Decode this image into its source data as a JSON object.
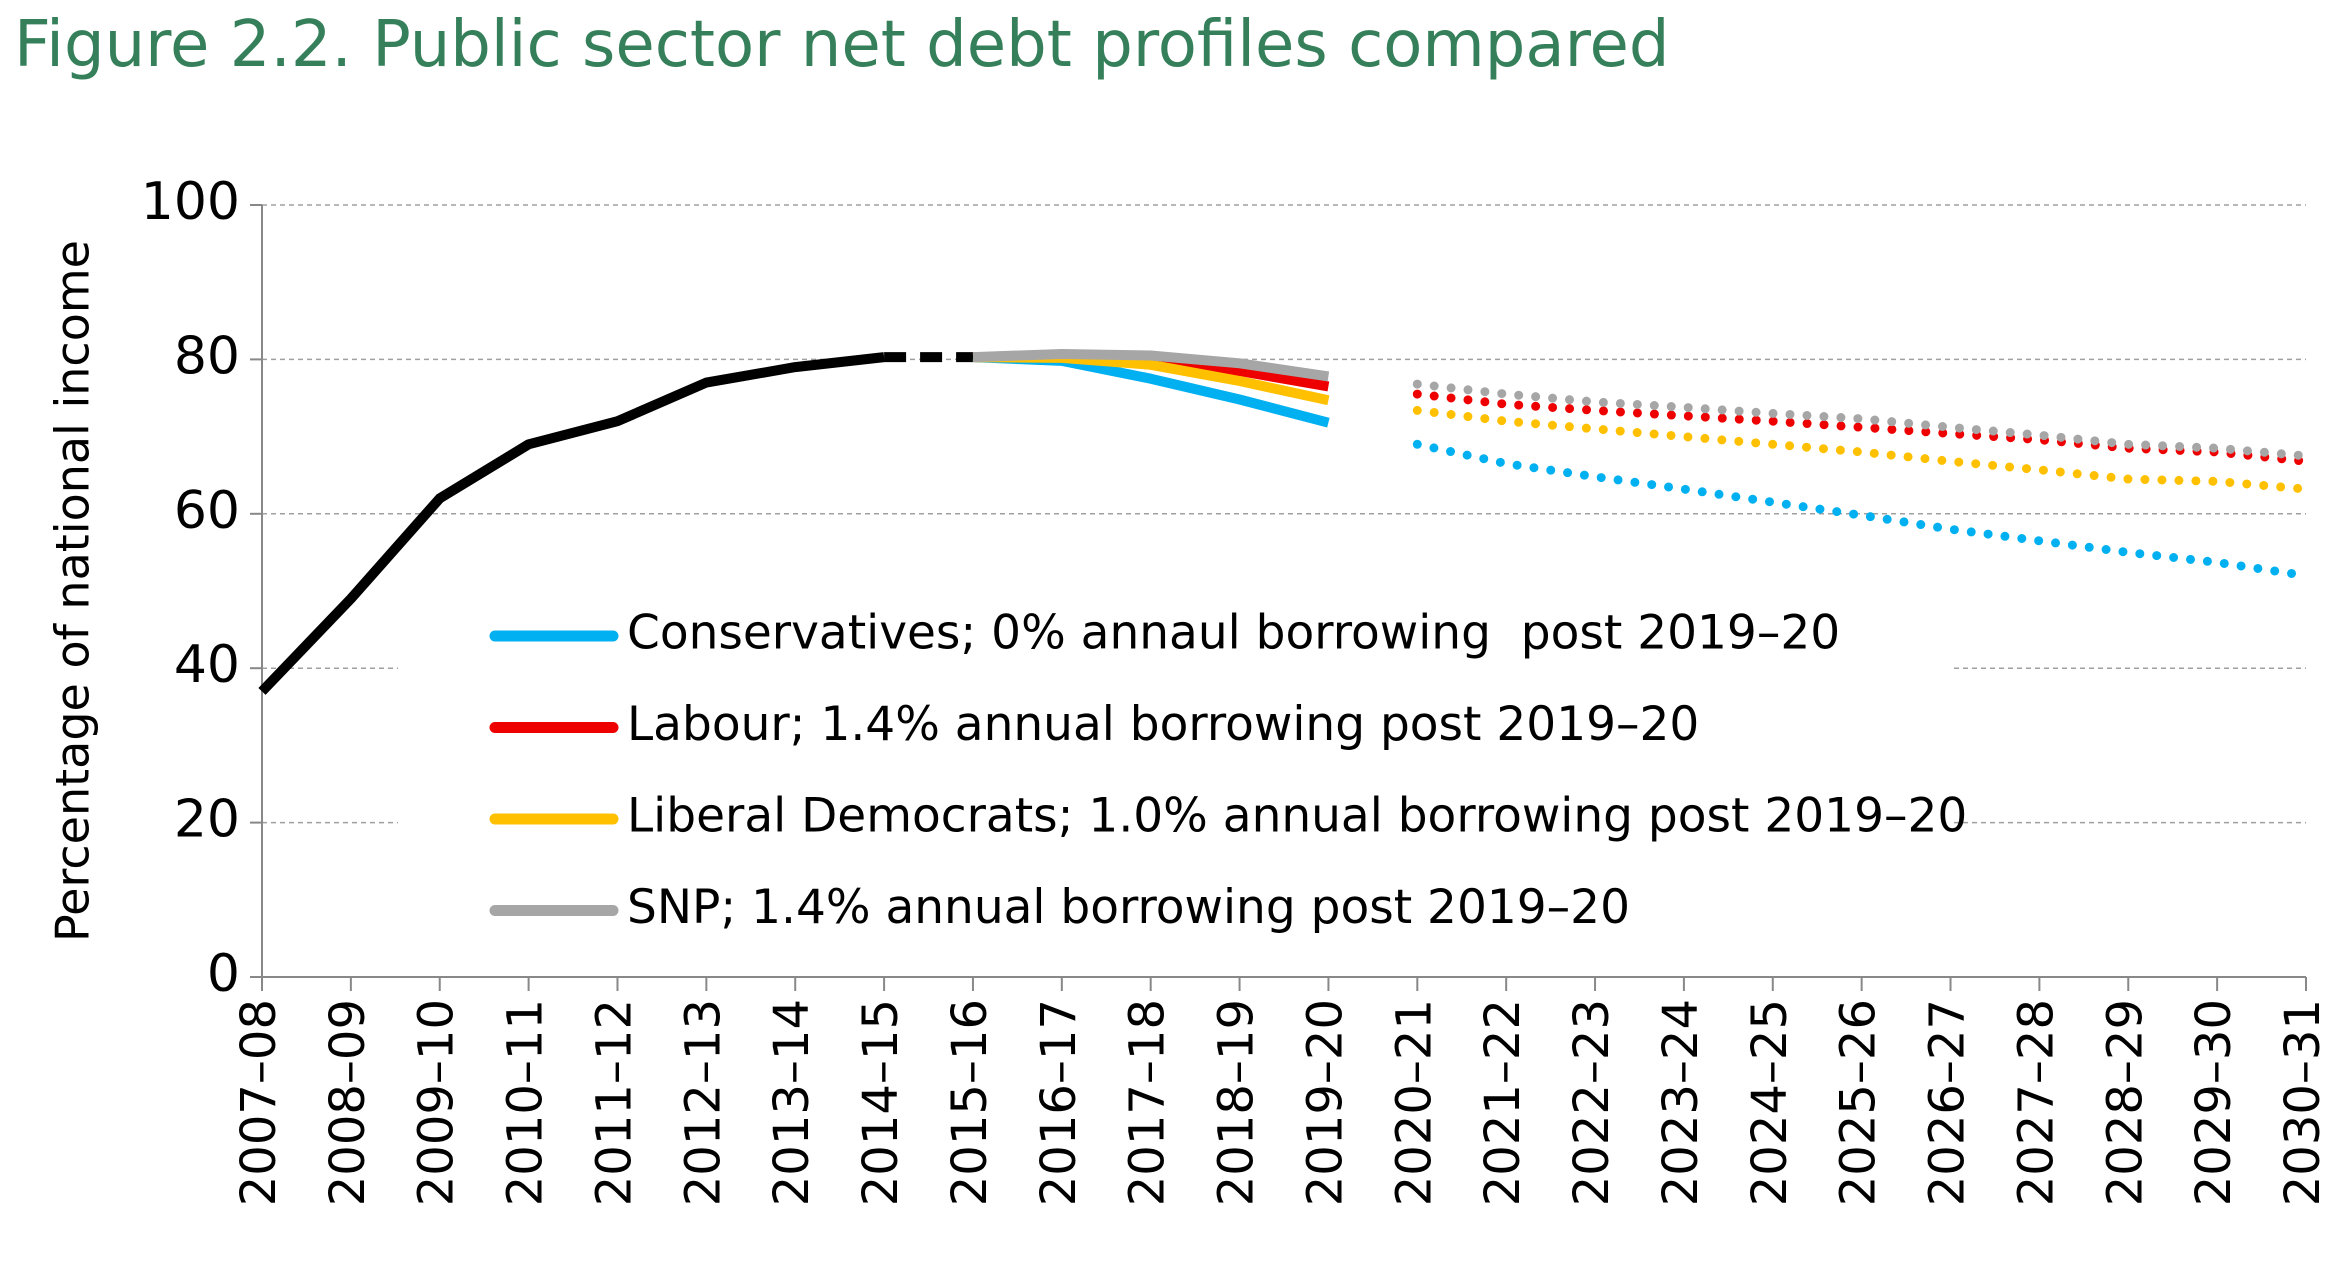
{
  "chart_data": {
    "type": "line",
    "title": "Figure 2.2. Public sector net debt profiles compared",
    "y_label": "Percentage of national income",
    "categories": [
      "2007–08",
      "2008–09",
      "2009–10",
      "2010–11",
      "2011–12",
      "2012–13",
      "2013–14",
      "2014–15",
      "2015–16",
      "2016–17",
      "2017–18",
      "2018–19",
      "2019–20",
      "2020–21",
      "2021–22",
      "2022–23",
      "2023–24",
      "2024–25",
      "2025–26",
      "2026–27",
      "2027–28",
      "2028–29",
      "2029–30",
      "2030–31"
    ],
    "ylim": [
      0,
      100
    ],
    "yticks": [
      0,
      20,
      40,
      60,
      80,
      100
    ],
    "grid": true,
    "legend": "center",
    "series": [
      {
        "color": "#000000",
        "style": "solid",
        "values": [
          37,
          49,
          62,
          69,
          72,
          77,
          79,
          80.3,
          null,
          null,
          null,
          null,
          null,
          null,
          null,
          null,
          null,
          null,
          null,
          null,
          null,
          null,
          null,
          null
        ]
      },
      {
        "color": "#000000",
        "style": "dashed",
        "values": [
          null,
          null,
          null,
          null,
          null,
          null,
          null,
          80.3,
          80.3,
          null,
          null,
          null,
          null,
          null,
          null,
          null,
          null,
          null,
          null,
          null,
          null,
          null,
          null,
          null
        ]
      },
      {
        "name": "Conservatives; 0% annaul borrowing  post 2019–20",
        "color": "#00b0f0",
        "style": "solid",
        "values": [
          null,
          null,
          null,
          null,
          null,
          null,
          null,
          null,
          80.3,
          79.8,
          77.5,
          74.8,
          71.8,
          null,
          null,
          null,
          null,
          null,
          null,
          null,
          null,
          null,
          null,
          null
        ]
      },
      {
        "name": "Labour; 1.4% annual borrowing post 2019–20",
        "color": "#ee0000",
        "style": "solid",
        "values": [
          null,
          null,
          null,
          null,
          null,
          null,
          null,
          null,
          80.3,
          80.4,
          79.8,
          78.5,
          76.5,
          null,
          null,
          null,
          null,
          null,
          null,
          null,
          null,
          null,
          null,
          null
        ]
      },
      {
        "name": "Liberal Democrats; 1.0% annual borrowing post 2019–20",
        "color": "#ffc000",
        "style": "solid",
        "values": [
          null,
          null,
          null,
          null,
          null,
          null,
          null,
          null,
          80.3,
          80.2,
          79.3,
          77.2,
          74.7,
          null,
          null,
          null,
          null,
          null,
          null,
          null,
          null,
          null,
          null,
          null
        ]
      },
      {
        "name": "SNP; 1.4% annual borrowing post 2019–20",
        "color": "#a6a6a6",
        "style": "solid",
        "values": [
          null,
          null,
          null,
          null,
          null,
          null,
          null,
          null,
          80.3,
          80.7,
          80.5,
          79.5,
          77.8,
          null,
          null,
          null,
          null,
          null,
          null,
          null,
          null,
          null,
          null,
          null
        ]
      },
      {
        "color": "#00b0f0",
        "style": "dotted",
        "values": [
          null,
          null,
          null,
          null,
          null,
          null,
          null,
          null,
          null,
          null,
          null,
          null,
          null,
          69,
          66.5,
          64.8,
          63.2,
          61.5,
          59.8,
          58,
          56.5,
          55,
          53.7,
          52
        ]
      },
      {
        "color": "#ffc000",
        "style": "dotted",
        "values": [
          null,
          null,
          null,
          null,
          null,
          null,
          null,
          null,
          null,
          null,
          null,
          null,
          null,
          73.4,
          72,
          71,
          70,
          69,
          68,
          66.8,
          65.7,
          64.5,
          64.2,
          63.2
        ]
      },
      {
        "color": "#ee0000",
        "style": "dotted",
        "values": [
          null,
          null,
          null,
          null,
          null,
          null,
          null,
          null,
          null,
          null,
          null,
          null,
          null,
          75.5,
          74.2,
          73.4,
          72.7,
          72,
          71.2,
          70.4,
          69.6,
          68.5,
          68,
          66.8
        ]
      },
      {
        "color": "#a6a6a6",
        "style": "dotted",
        "values": [
          null,
          null,
          null,
          null,
          null,
          null,
          null,
          null,
          null,
          null,
          null,
          null,
          null,
          76.8,
          75.5,
          74.5,
          73.8,
          73,
          72.3,
          71.2,
          70.2,
          69,
          68.5,
          67.5
        ]
      }
    ]
  }
}
